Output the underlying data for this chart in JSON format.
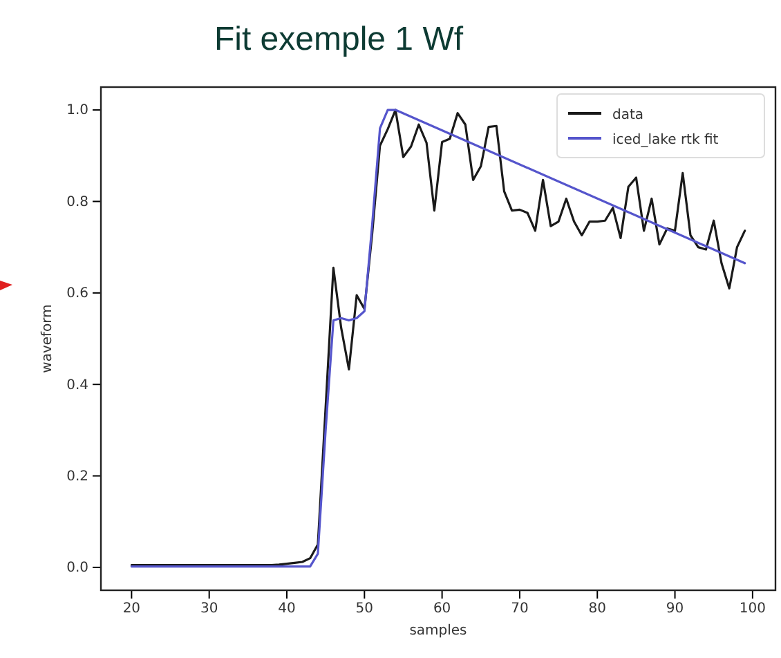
{
  "chart_data": {
    "type": "line",
    "title": "Fit exemple 1 Wf",
    "xlabel": "samples",
    "ylabel": "waveform",
    "xlim": [
      16.05,
      102.95
    ],
    "ylim": [
      -0.05,
      1.05
    ],
    "xticks": [
      20,
      30,
      40,
      50,
      60,
      70,
      80,
      90,
      100
    ],
    "yticks": [
      {
        "value": 0,
        "label": "0.0"
      },
      {
        "value": 0.2,
        "label": "0.2"
      },
      {
        "value": 0.4,
        "label": "0.4"
      },
      {
        "value": 0.6,
        "label": "0.6"
      },
      {
        "value": 0.8,
        "label": "0.8"
      },
      {
        "value": 1,
        "label": "1.0"
      }
    ],
    "grid": false,
    "legend": "top right",
    "marker": "none",
    "line_style": "solid",
    "series": [
      {
        "name": "data",
        "color": "#1a1a1a",
        "x": [
          20,
          21,
          22,
          23,
          24,
          25,
          26,
          27,
          28,
          29,
          30,
          31,
          32,
          33,
          34,
          35,
          36,
          37,
          38,
          39,
          40,
          41,
          42,
          43,
          44,
          45,
          46,
          47,
          48,
          49,
          50,
          51,
          52,
          53,
          54,
          55,
          56,
          57,
          58,
          59,
          60,
          61,
          62,
          63,
          64,
          65,
          66,
          67,
          68,
          69,
          70,
          71,
          72,
          73,
          74,
          75,
          76,
          77,
          78,
          79,
          80,
          81,
          82,
          83,
          84,
          85,
          86,
          87,
          88,
          89,
          90,
          91,
          92,
          93,
          94,
          95,
          96,
          97,
          98,
          99
        ],
        "values": [
          0.005,
          0.005,
          0.005,
          0.005,
          0.005,
          0.005,
          0.005,
          0.005,
          0.005,
          0.005,
          0.005,
          0.005,
          0.005,
          0.005,
          0.005,
          0.005,
          0.005,
          0.005,
          0.005,
          0.006,
          0.008,
          0.01,
          0.012,
          0.02,
          0.05,
          0.35,
          0.655,
          0.524,
          0.433,
          0.595,
          0.565,
          0.73,
          0.922,
          0.958,
          1.0,
          0.897,
          0.92,
          0.968,
          0.928,
          0.78,
          0.93,
          0.937,
          0.993,
          0.968,
          0.847,
          0.877,
          0.963,
          0.965,
          0.822,
          0.78,
          0.782,
          0.775,
          0.736,
          0.847,
          0.746,
          0.756,
          0.806,
          0.756,
          0.726,
          0.756,
          0.756,
          0.758,
          0.786,
          0.72,
          0.832,
          0.852,
          0.736,
          0.806,
          0.706,
          0.741,
          0.736,
          0.862,
          0.726,
          0.7,
          0.695,
          0.758,
          0.665,
          0.61,
          0.7,
          0.736
        ]
      },
      {
        "name": "iced_lake rtk fit",
        "color": "#5555cc",
        "x": [
          20,
          43,
          44,
          45,
          46,
          47,
          48,
          49,
          50,
          51,
          52,
          53,
          54,
          99
        ],
        "values": [
          0.002,
          0.002,
          0.03,
          0.3,
          0.54,
          0.545,
          0.54,
          0.545,
          0.56,
          0.75,
          0.96,
          1.0,
          1.0,
          0.665
        ]
      }
    ]
  }
}
